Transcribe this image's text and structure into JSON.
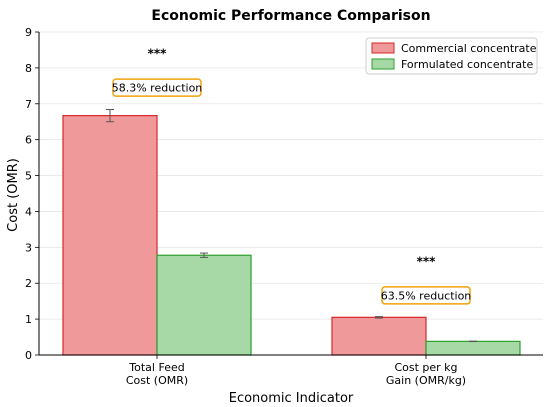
{
  "chart_data": {
    "type": "bar",
    "title": "Economic Performance Comparison",
    "xlabel": "Economic Indicator",
    "ylabel": "Cost (OMR)",
    "ylim": [
      0,
      9
    ],
    "yticks": [
      0,
      1,
      2,
      3,
      4,
      5,
      6,
      7,
      8,
      9
    ],
    "grid": "y",
    "legend": "top-right",
    "categories": [
      [
        "Total Feed",
        "Cost (OMR)"
      ],
      [
        "Cost per kg",
        "Gain (OMR/kg)"
      ]
    ],
    "series": [
      {
        "name": "Commercial concentrate",
        "values": [
          6.67,
          1.05
        ],
        "errors": [
          0.17,
          0.02
        ],
        "fill": "#f0999b",
        "stroke": "#d62728"
      },
      {
        "name": "Formulated concentrate",
        "values": [
          2.78,
          0.38
        ],
        "errors": [
          0.06,
          0.005
        ],
        "fill": "#a6d9a6",
        "stroke": "#2ca02c"
      }
    ],
    "annotations": [
      {
        "category": 0,
        "significance": "***",
        "sig_y": 8.4,
        "text": "58.3% reduction",
        "text_y": 7.45
      },
      {
        "category": 1,
        "significance": "***",
        "sig_y": 2.6,
        "text": "63.5% reduction",
        "text_y": 1.66
      }
    ],
    "callout_border": "#f0a30a"
  }
}
